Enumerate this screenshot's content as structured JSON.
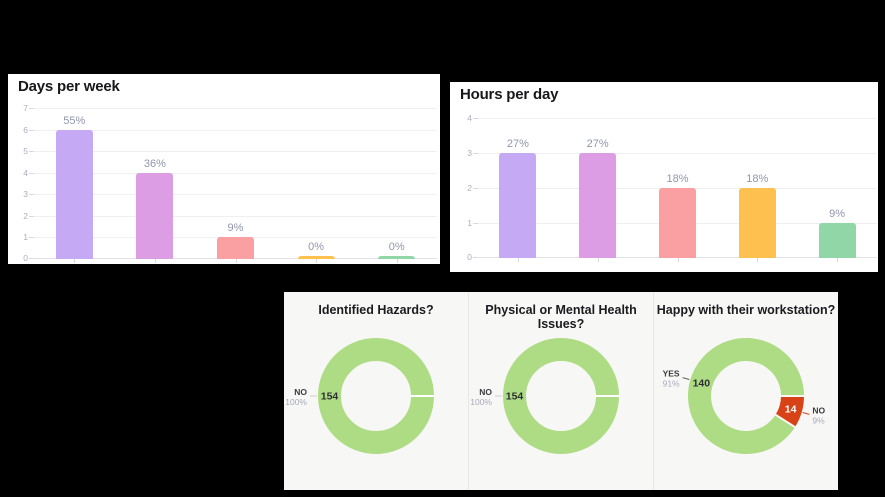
{
  "page": {
    "background_color": "#000000",
    "panel_color": "#ffffff",
    "donut_panel_color": "#f7f7f5",
    "grid_color": "#eeeef3",
    "axis_label_color": "#abaebf",
    "bar_label_color": "#9196ad",
    "title_color": "#17171c"
  },
  "chart_data": [
    {
      "type": "bar",
      "title": "Days per week",
      "xlabel": "",
      "ylabel": "",
      "ylim": [
        0,
        7
      ],
      "yticks": [
        0,
        1,
        2,
        3,
        4,
        5,
        6,
        7
      ],
      "values": [
        6,
        4,
        1,
        0,
        0
      ],
      "bar_labels": [
        "55%",
        "36%",
        "9%",
        "0%",
        "0%"
      ],
      "bar_colors": [
        "#c6a9f4",
        "#dd9de4",
        "#fa9fa2",
        "#fec14f",
        "#90d6a6"
      ],
      "grid": true,
      "legend": false
    },
    {
      "type": "bar",
      "title": "Hours per day",
      "xlabel": "",
      "ylabel": "",
      "ylim": [
        0,
        4
      ],
      "yticks": [
        0,
        1,
        2,
        3,
        4
      ],
      "values": [
        3,
        3,
        2,
        2,
        1
      ],
      "bar_labels": [
        "27%",
        "27%",
        "18%",
        "18%",
        "9%"
      ],
      "bar_colors": [
        "#c6a9f4",
        "#dd9de4",
        "#fa9fa2",
        "#fec14f",
        "#90d6a6"
      ],
      "grid": true,
      "legend": false
    },
    {
      "type": "pie",
      "title": "Identified Hazards?",
      "slices": [
        {
          "label": "NO",
          "pct_label": "100%",
          "value": "154",
          "fraction": 1.0,
          "color": "#aedc84",
          "value_color": "#2f2f33",
          "leader_color": "#cbd2c8"
        }
      ]
    },
    {
      "type": "pie",
      "title": "Physical or Mental Health Issues?",
      "slices": [
        {
          "label": "NO",
          "pct_label": "100%",
          "value": "154",
          "fraction": 1.0,
          "color": "#aedc84",
          "value_color": "#2f2f33",
          "leader_color": "#cbd2c8"
        }
      ]
    },
    {
      "type": "pie",
      "title": "Happy with their workstation?",
      "slices": [
        {
          "label": "YES",
          "pct_label": "91%",
          "value": "140",
          "fraction": 0.91,
          "color": "#aedc84",
          "value_color": "#2f2f33",
          "leader_color": "#606060"
        },
        {
          "label": "NO",
          "pct_label": "9%",
          "value": "14",
          "fraction": 0.09,
          "color": "#d74317",
          "value_color": "#ffffff",
          "leader_color": "#d74317"
        }
      ]
    }
  ]
}
